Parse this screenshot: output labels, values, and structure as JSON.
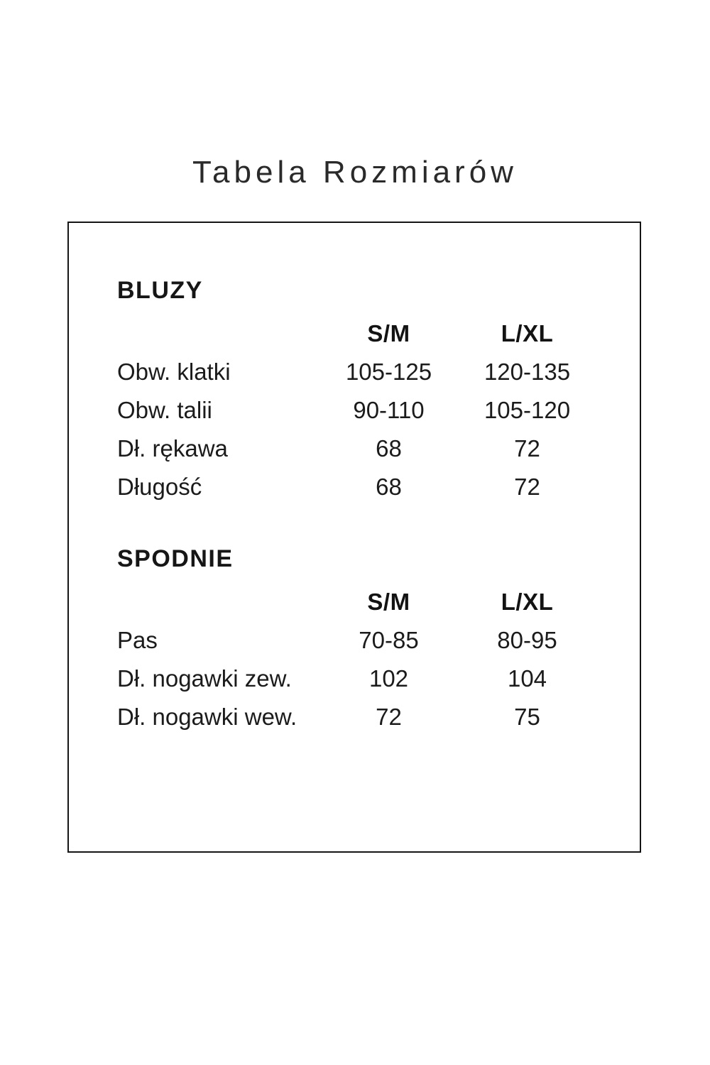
{
  "page": {
    "title": "Tabela Rozmiarów"
  },
  "colors": {
    "background": "#ffffff",
    "text": "#1b1b1b",
    "border": "#151515"
  },
  "chart_data": {
    "type": "table",
    "title": "Tabela Rozmiarów",
    "sections": [
      {
        "heading": "BLUZY",
        "columns": [
          "S/M",
          "L/XL"
        ],
        "rows": [
          {
            "label": "Obw. klatki",
            "values": [
              "105-125",
              "120-135"
            ]
          },
          {
            "label": "Obw. talii",
            "values": [
              "90-110",
              "105-120"
            ]
          },
          {
            "label": "Dł. rękawa",
            "values": [
              "68",
              "72"
            ]
          },
          {
            "label": "Długość",
            "values": [
              "68",
              "72"
            ]
          }
        ]
      },
      {
        "heading": "SPODNIE",
        "columns": [
          "S/M",
          "L/XL"
        ],
        "rows": [
          {
            "label": "Pas",
            "values": [
              "70-85",
              "80-95"
            ]
          },
          {
            "label": "Dł. nogawki zew.",
            "values": [
              "102",
              "104"
            ]
          },
          {
            "label": "Dł. nogawki wew.",
            "values": [
              "72",
              "75"
            ]
          }
        ]
      }
    ]
  }
}
